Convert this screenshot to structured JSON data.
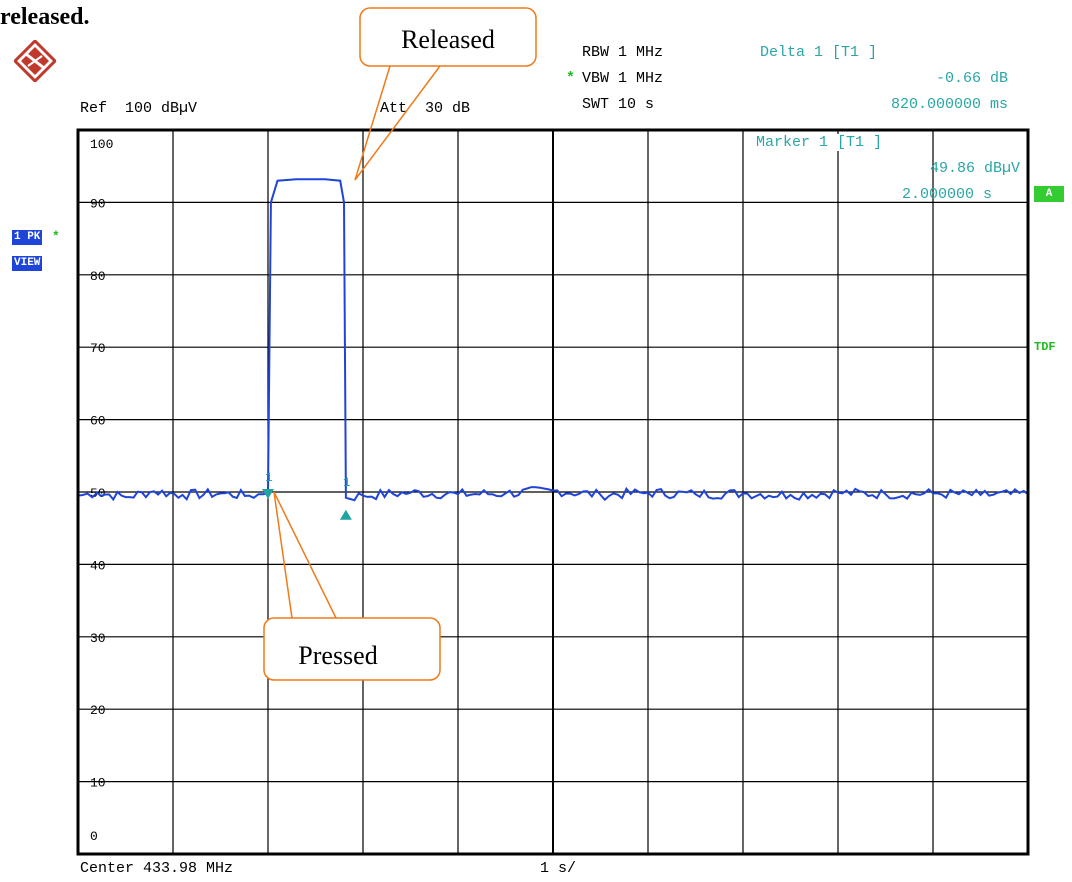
{
  "heading": "released.",
  "header": {
    "ref": "Ref  100 dBµV",
    "att": "Att  30 dB",
    "rbw": "RBW 1 MHz",
    "vbw_star": "*",
    "vbw": "VBW 1 MHz",
    "swt": "SWT 10 s",
    "delta_title": "Delta 1 [T1 ]",
    "delta_value": "-0.66 dB",
    "delta_time": "820.000000 ms",
    "marker_title": "Marker 1 [T1 ]",
    "marker_value": "49.86 dBµV",
    "marker_time": "2.000000 s"
  },
  "side": {
    "trace_badge": "1 PK",
    "trace_star": "*",
    "view_badge": "VIEW",
    "a_badge": "A",
    "tdf": "TDF"
  },
  "footer": {
    "center": "Center 433.98 MHz",
    "span": "1 s/"
  },
  "callouts": {
    "released": "Released",
    "pressed": "Pressed"
  },
  "colors": {
    "trace": "#1f44d8",
    "marker": "#21a3a0",
    "callout": "#ef7a1a",
    "grid": "#000000"
  },
  "chart_data": {
    "type": "line",
    "title": "",
    "xlabel": "Center 433.98 MHz",
    "ylabel": "",
    "xlim": [
      0,
      10
    ],
    "ylim": [
      0,
      100
    ],
    "x_unit": "s",
    "y_unit": "dBµV",
    "grid": true,
    "y_ticks": [
      0,
      10,
      20,
      30,
      40,
      50,
      60,
      70,
      80,
      90,
      100
    ],
    "series": [
      {
        "x": [
          0,
          0.2,
          0.5,
          0.8,
          1.1,
          1.5,
          1.8,
          1.95,
          2.0,
          2.03,
          2.1,
          2.3,
          2.6,
          2.76,
          2.8,
          2.82,
          3.0,
          3.5,
          4.0,
          4.5,
          5.0,
          5.5,
          6.0,
          6.5,
          7.0,
          7.5,
          8.0,
          8.5,
          9.0,
          9.5,
          10.0
        ],
        "y": [
          49.5,
          49.9,
          49.3,
          50.1,
          49.6,
          49.8,
          49.5,
          49.7,
          49.86,
          90,
          93,
          93.2,
          93.2,
          93,
          90,
          49.2,
          49.5,
          49.9,
          49.7,
          49.8,
          50.2,
          49.6,
          49.9,
          49.7,
          49.8,
          49.6,
          49.9,
          49.7,
          49.8,
          49.6,
          49.7
        ]
      }
    ],
    "markers": [
      {
        "label": "1",
        "x": 2.0,
        "y": 49.86
      },
      {
        "label": "1",
        "x": 2.82,
        "y": 49.2
      }
    ],
    "annotations": [
      "Released",
      "Pressed"
    ]
  }
}
